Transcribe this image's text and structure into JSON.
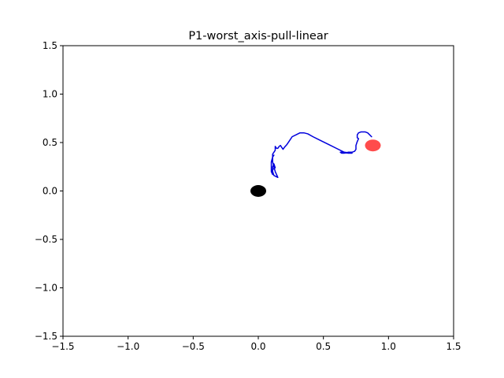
{
  "chart_data": {
    "type": "scatter",
    "title": "P1-worst_axis-pull-linear",
    "xlabel": "",
    "ylabel": "",
    "xlim": [
      -1.5,
      1.5
    ],
    "ylim": [
      -1.5,
      1.5
    ],
    "xticks": [
      -1.5,
      -1.0,
      -0.5,
      0.0,
      0.5,
      1.0,
      1.5
    ],
    "yticks": [
      -1.5,
      -1.0,
      -0.5,
      0.0,
      0.5,
      1.0,
      1.5
    ],
    "xtick_labels": [
      "−1.5",
      "−1.0",
      "−0.5",
      "0.0",
      "0.5",
      "1.0",
      "1.5"
    ],
    "ytick_labels": [
      "−1.5",
      "−1.0",
      "−0.5",
      "0.0",
      "0.5",
      "1.0",
      "1.5"
    ],
    "grid": false,
    "series": [
      {
        "kind": "line",
        "color": "#0000dd",
        "x": [
          0.87,
          0.84,
          0.82,
          0.79,
          0.77,
          0.76,
          0.76,
          0.77,
          0.76,
          0.75,
          0.75,
          0.74,
          0.72,
          0.69,
          0.66,
          0.64,
          0.63,
          0.66,
          0.69,
          0.72,
          0.66,
          0.6,
          0.54,
          0.48,
          0.42,
          0.38,
          0.35,
          0.32,
          0.29,
          0.26,
          0.24,
          0.22,
          0.2,
          0.19,
          0.18,
          0.17,
          0.16,
          0.15,
          0.14,
          0.13,
          0.13,
          0.13,
          0.12,
          0.11,
          0.11,
          0.11,
          0.12,
          0.13,
          0.14,
          0.15,
          0.12,
          0.11,
          0.11,
          0.12,
          0.13,
          0.11,
          0.1,
          0.11,
          0.1,
          0.1,
          0.11,
          0.12
        ],
        "y": [
          0.56,
          0.6,
          0.61,
          0.61,
          0.6,
          0.58,
          0.55,
          0.54,
          0.51,
          0.47,
          0.43,
          0.41,
          0.4,
          0.4,
          0.39,
          0.39,
          0.4,
          0.4,
          0.39,
          0.39,
          0.4,
          0.44,
          0.48,
          0.52,
          0.56,
          0.59,
          0.6,
          0.6,
          0.58,
          0.56,
          0.52,
          0.48,
          0.45,
          0.43,
          0.45,
          0.47,
          0.46,
          0.44,
          0.44,
          0.46,
          0.45,
          0.42,
          0.4,
          0.38,
          0.34,
          0.3,
          0.25,
          0.2,
          0.17,
          0.14,
          0.16,
          0.2,
          0.25,
          0.28,
          0.24,
          0.22,
          0.2,
          0.17,
          0.2,
          0.3,
          0.35,
          0.37
        ]
      },
      {
        "kind": "point",
        "color": "#000000",
        "opacity": 1,
        "x": [
          0.0
        ],
        "y": [
          0.0
        ]
      },
      {
        "kind": "point",
        "color": "#ff0000",
        "opacity": 0.7,
        "x": [
          0.88
        ],
        "y": [
          0.47
        ]
      }
    ]
  }
}
